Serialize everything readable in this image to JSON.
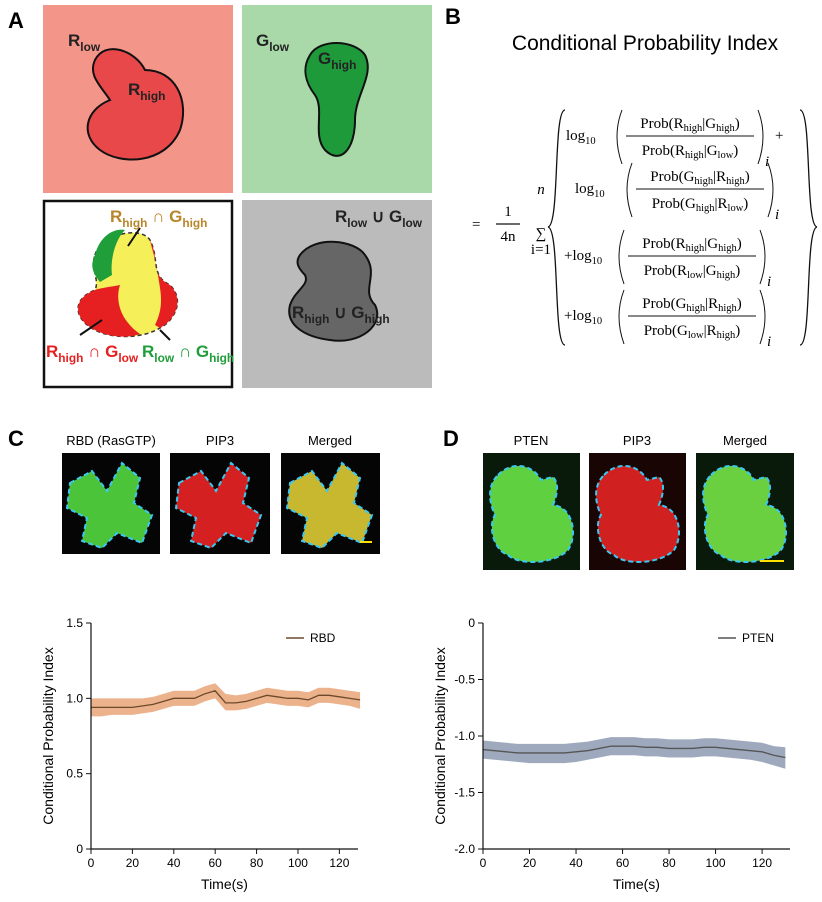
{
  "figure": {
    "panel_labels": [
      "A",
      "B",
      "C",
      "D"
    ],
    "panel_a": {
      "labels": [
        [
          {
            "text": "R"
          },
          {
            "sub": "low"
          }
        ],
        [
          {
            "text": "R"
          },
          {
            "sub": "high"
          }
        ],
        [
          {
            "text": "G"
          },
          {
            "sub": "low"
          }
        ],
        [
          {
            "text": "G"
          },
          {
            "sub": "high"
          }
        ],
        [
          {
            "text": "R"
          },
          {
            "sub": "high"
          },
          {
            "text": " ∩ G"
          },
          {
            "sub": "high"
          }
        ],
        [
          {
            "text": "R"
          },
          {
            "sub": "high"
          },
          {
            "text": " ∩ G"
          },
          {
            "sub": "low"
          }
        ],
        [
          {
            "text": "R"
          },
          {
            "sub": "low"
          },
          {
            "text": " ∩ G"
          },
          {
            "sub": "high"
          }
        ],
        [
          {
            "text": "R"
          },
          {
            "sub": "low"
          },
          {
            "text": " ∪ G"
          },
          {
            "sub": "low"
          }
        ],
        [
          {
            "text": "R"
          },
          {
            "sub": "high"
          },
          {
            "text": " ∪ G"
          },
          {
            "sub": "high"
          }
        ]
      ]
    },
    "panel_b": {
      "title": "Conditional Probability Index",
      "equals": "=",
      "coef_num": "1",
      "coef_den": "4n",
      "sum": "∑",
      "sum_top": "n",
      "sum_bottom": "i=1",
      "terms": [
        {
          "prefix": [
            {
              "text": "log"
            },
            {
              "sub": "10"
            }
          ],
          "numerator": [
            {
              "text": "Prob(R"
            },
            {
              "sub": "high"
            },
            {
              "text": "|G"
            },
            {
              "sub": "high"
            },
            {
              "text": ")"
            }
          ],
          "denominator": [
            {
              "text": "Prob(R"
            },
            {
              "sub": "high"
            },
            {
              "text": "|G"
            },
            {
              "sub": "low"
            },
            {
              "text": ")"
            }
          ],
          "index": "i",
          "suffix": "+"
        },
        {
          "prefix": [
            {
              "text": "log"
            },
            {
              "sub": "10"
            }
          ],
          "numerator": [
            {
              "text": "Prob(G"
            },
            {
              "sub": "high"
            },
            {
              "text": "|R"
            },
            {
              "sub": "high"
            },
            {
              "text": ")"
            }
          ],
          "denominator": [
            {
              "text": "Prob(G"
            },
            {
              "sub": "high"
            },
            {
              "text": "|R"
            },
            {
              "sub": "low"
            },
            {
              "text": ")"
            }
          ],
          "index": "i"
        },
        {
          "prefix": [
            {
              "text": "+log"
            },
            {
              "sub": "10"
            }
          ],
          "numerator": [
            {
              "text": "Prob(R"
            },
            {
              "sub": "high"
            },
            {
              "text": "|G"
            },
            {
              "sub": "high"
            },
            {
              "text": ")"
            }
          ],
          "denominator": [
            {
              "text": "Prob(R"
            },
            {
              "sub": "low"
            },
            {
              "text": "|G"
            },
            {
              "sub": "high"
            },
            {
              "text": ")"
            }
          ],
          "index": "i"
        },
        {
          "prefix": [
            {
              "text": "+log"
            },
            {
              "sub": "10"
            }
          ],
          "numerator": [
            {
              "text": "Prob(G"
            },
            {
              "sub": "high"
            },
            {
              "text": "|R"
            },
            {
              "sub": "high"
            },
            {
              "text": ")"
            }
          ],
          "denominator": [
            {
              "text": "Prob(G"
            },
            {
              "sub": "low"
            },
            {
              "text": "|R"
            },
            {
              "sub": "high"
            },
            {
              "text": ")"
            }
          ],
          "index": "i"
        }
      ]
    },
    "panel_c_images": [
      "RBD (RasGTP)",
      "PIP3",
      "Merged"
    ],
    "panel_d_images": [
      "PTEN",
      "PIP3",
      "Merged"
    ]
  },
  "chart_data": [
    {
      "type": "line",
      "x_label": "Time(s)",
      "y_label": "Conditional Probability Index",
      "legend": "upper right",
      "x": [
        0,
        5,
        10,
        15,
        20,
        25,
        30,
        35,
        40,
        45,
        50,
        55,
        60,
        65,
        70,
        75,
        80,
        85,
        90,
        95,
        100,
        105,
        110,
        115,
        120,
        125,
        130
      ],
      "xlim": [
        0,
        129
      ],
      "xticks": [
        0,
        20,
        40,
        60,
        80,
        100,
        120
      ],
      "ylim": [
        0,
        1.5
      ],
      "yticks": [
        0,
        0.5,
        {
          "value": 1,
          "label": "1.0"
        },
        1.5
      ],
      "series": [
        {
          "name": "RBD",
          "color": "#6b4a2b",
          "band_color": "#e9a577",
          "values": [
            0.94,
            0.94,
            0.94,
            0.94,
            0.94,
            0.95,
            0.96,
            0.98,
            1.0,
            1.0,
            1.0,
            1.03,
            1.05,
            0.97,
            0.97,
            0.98,
            1.0,
            1.02,
            1.01,
            1.0,
            1.0,
            0.99,
            1.02,
            1.02,
            1.01,
            1.0,
            0.99
          ],
          "upper": [
            1.0,
            1.0,
            1.0,
            1.0,
            1.0,
            1.0,
            1.01,
            1.03,
            1.05,
            1.05,
            1.05,
            1.08,
            1.1,
            1.03,
            1.02,
            1.03,
            1.05,
            1.07,
            1.06,
            1.05,
            1.05,
            1.04,
            1.07,
            1.07,
            1.06,
            1.05,
            1.04
          ],
          "lower": [
            0.88,
            0.88,
            0.89,
            0.89,
            0.89,
            0.9,
            0.91,
            0.93,
            0.95,
            0.95,
            0.95,
            0.98,
            1.0,
            0.92,
            0.92,
            0.93,
            0.95,
            0.97,
            0.96,
            0.95,
            0.95,
            0.94,
            0.97,
            0.97,
            0.96,
            0.95,
            0.93
          ]
        }
      ]
    },
    {
      "type": "line",
      "x_label": "Time(s)",
      "y_label": "Conditional Probability Index",
      "legend": "upper right",
      "x": [
        0,
        5,
        10,
        15,
        20,
        25,
        30,
        35,
        40,
        45,
        50,
        55,
        60,
        65,
        70,
        75,
        80,
        85,
        90,
        95,
        100,
        105,
        110,
        115,
        120,
        125,
        130
      ],
      "xlim": [
        0,
        132
      ],
      "xticks": [
        0,
        20,
        40,
        60,
        80,
        100,
        120
      ],
      "ylim": [
        -2,
        0
      ],
      "yticks": [
        {
          "value": -2,
          "label": "-2.0"
        },
        -1.5,
        {
          "value": -1,
          "label": "-1.0"
        },
        -0.5,
        0
      ],
      "series": [
        {
          "name": "PTEN",
          "color": "#555555",
          "band_color": "#8e9ab2",
          "values": [
            -1.12,
            -1.13,
            -1.14,
            -1.15,
            -1.15,
            -1.15,
            -1.15,
            -1.15,
            -1.14,
            -1.13,
            -1.11,
            -1.09,
            -1.09,
            -1.09,
            -1.1,
            -1.1,
            -1.11,
            -1.11,
            -1.11,
            -1.1,
            -1.1,
            -1.11,
            -1.12,
            -1.13,
            -1.14,
            -1.17,
            -1.19
          ],
          "upper": [
            -1.04,
            -1.05,
            -1.06,
            -1.07,
            -1.07,
            -1.07,
            -1.07,
            -1.07,
            -1.06,
            -1.05,
            -1.03,
            -1.01,
            -1.01,
            -1.01,
            -1.02,
            -1.02,
            -1.03,
            -1.03,
            -1.03,
            -1.02,
            -1.02,
            -1.03,
            -1.04,
            -1.05,
            -1.06,
            -1.09,
            -1.1
          ],
          "lower": [
            -1.2,
            -1.21,
            -1.22,
            -1.23,
            -1.24,
            -1.24,
            -1.24,
            -1.24,
            -1.23,
            -1.21,
            -1.19,
            -1.17,
            -1.17,
            -1.17,
            -1.18,
            -1.18,
            -1.19,
            -1.19,
            -1.19,
            -1.18,
            -1.18,
            -1.19,
            -1.2,
            -1.21,
            -1.23,
            -1.26,
            -1.29
          ]
        }
      ]
    }
  ]
}
